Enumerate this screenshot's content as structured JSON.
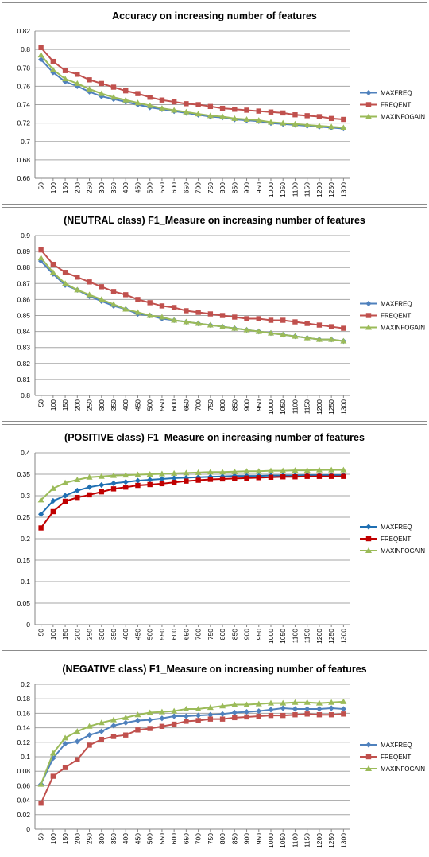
{
  "chart_data": [
    {
      "type": "line",
      "title": "Accuracy on increasing number of features",
      "xlabel": "",
      "ylabel": "",
      "categories": [
        "50",
        "100",
        "150",
        "200",
        "250",
        "300",
        "350",
        "400",
        "450",
        "500",
        "550",
        "600",
        "650",
        "700",
        "750",
        "800",
        "850",
        "900",
        "950",
        "1000",
        "1050",
        "1100",
        "1150",
        "1200",
        "1250",
        "1300"
      ],
      "ylim": [
        0.66,
        0.82
      ],
      "yticks": [
        "0.66",
        "0.68",
        "0.7",
        "0.72",
        "0.74",
        "0.76",
        "0.78",
        "0.8",
        "0.82"
      ],
      "grid": true,
      "legend": "right",
      "series": [
        {
          "name": "MAXFREQ",
          "color": "#4f81bd",
          "marker": "diamond",
          "values": [
            0.789,
            0.775,
            0.765,
            0.76,
            0.754,
            0.749,
            0.746,
            0.743,
            0.74,
            0.737,
            0.735,
            0.733,
            0.731,
            0.729,
            0.727,
            0.726,
            0.724,
            0.723,
            0.722,
            0.72,
            0.719,
            0.718,
            0.717,
            0.716,
            0.715,
            0.714
          ]
        },
        {
          "name": "FREQENT",
          "color": "#c0504d",
          "marker": "square",
          "values": [
            0.802,
            0.787,
            0.777,
            0.773,
            0.767,
            0.763,
            0.759,
            0.755,
            0.752,
            0.748,
            0.745,
            0.743,
            0.741,
            0.74,
            0.738,
            0.736,
            0.735,
            0.734,
            0.733,
            0.732,
            0.731,
            0.729,
            0.728,
            0.727,
            0.725,
            0.724
          ]
        },
        {
          "name": "MAXINFOGAIN",
          "color": "#9bbb59",
          "marker": "triangle",
          "values": [
            0.794,
            0.778,
            0.768,
            0.763,
            0.757,
            0.752,
            0.748,
            0.745,
            0.742,
            0.739,
            0.736,
            0.734,
            0.732,
            0.73,
            0.728,
            0.727,
            0.725,
            0.724,
            0.723,
            0.721,
            0.72,
            0.719,
            0.718,
            0.717,
            0.716,
            0.715
          ]
        }
      ]
    },
    {
      "type": "line",
      "title": "(NEUTRAL class) F1_Measure on increasing number of features",
      "xlabel": "",
      "ylabel": "",
      "categories": [
        "50",
        "100",
        "150",
        "200",
        "250",
        "300",
        "350",
        "400",
        "450",
        "500",
        "550",
        "600",
        "650",
        "700",
        "750",
        "800",
        "850",
        "900",
        "950",
        "1000",
        "1050",
        "1100",
        "1150",
        "1200",
        "1250",
        "1300"
      ],
      "ylim": [
        0.8,
        0.9
      ],
      "yticks": [
        "0.8",
        "0.81",
        "0.82",
        "0.83",
        "0.84",
        "0.85",
        "0.86",
        "0.87",
        "0.88",
        "0.89",
        "0.9"
      ],
      "grid": true,
      "legend": "right",
      "series": [
        {
          "name": "MAXFREQ",
          "color": "#4f81bd",
          "marker": "diamond",
          "values": [
            0.884,
            0.876,
            0.869,
            0.866,
            0.862,
            0.859,
            0.856,
            0.854,
            0.851,
            0.85,
            0.848,
            0.847,
            0.846,
            0.845,
            0.844,
            0.843,
            0.842,
            0.841,
            0.84,
            0.839,
            0.838,
            0.837,
            0.836,
            0.835,
            0.835,
            0.834
          ]
        },
        {
          "name": "FREQENT",
          "color": "#c0504d",
          "marker": "square",
          "values": [
            0.891,
            0.882,
            0.877,
            0.874,
            0.871,
            0.868,
            0.865,
            0.863,
            0.86,
            0.858,
            0.856,
            0.855,
            0.853,
            0.852,
            0.851,
            0.85,
            0.849,
            0.848,
            0.848,
            0.847,
            0.847,
            0.846,
            0.845,
            0.844,
            0.843,
            0.842
          ]
        },
        {
          "name": "MAXINFOGAIN",
          "color": "#9bbb59",
          "marker": "triangle",
          "values": [
            0.886,
            0.877,
            0.87,
            0.866,
            0.863,
            0.86,
            0.857,
            0.854,
            0.852,
            0.85,
            0.849,
            0.847,
            0.846,
            0.845,
            0.844,
            0.843,
            0.842,
            0.841,
            0.84,
            0.839,
            0.838,
            0.837,
            0.836,
            0.835,
            0.835,
            0.834
          ]
        }
      ]
    },
    {
      "type": "line",
      "title": "(POSITIVE class) F1_Measure on increasing number of features",
      "xlabel": "",
      "ylabel": "",
      "categories": [
        "50",
        "100",
        "150",
        "200",
        "250",
        "300",
        "350",
        "400",
        "450",
        "500",
        "550",
        "600",
        "650",
        "700",
        "750",
        "800",
        "850",
        "900",
        "950",
        "1000",
        "1050",
        "1100",
        "1150",
        "1200",
        "1250",
        "1300"
      ],
      "ylim": [
        0,
        0.4
      ],
      "yticks": [
        "0",
        "0.05",
        "0.1",
        "0.15",
        "0.2",
        "0.25",
        "0.3",
        "0.35",
        "0.4"
      ],
      "grid": true,
      "legend": "right",
      "series": [
        {
          "name": "MAXFREQ",
          "color": "#1f6fb2",
          "marker": "diamond",
          "values": [
            0.257,
            0.288,
            0.3,
            0.312,
            0.32,
            0.325,
            0.329,
            0.332,
            0.335,
            0.337,
            0.339,
            0.341,
            0.342,
            0.343,
            0.344,
            0.345,
            0.346,
            0.346,
            0.346,
            0.347,
            0.347,
            0.347,
            0.348,
            0.348,
            0.348,
            0.348
          ]
        },
        {
          "name": "FREQENT",
          "color": "#c00000",
          "marker": "square",
          "values": [
            0.225,
            0.263,
            0.287,
            0.296,
            0.302,
            0.309,
            0.316,
            0.32,
            0.324,
            0.326,
            0.328,
            0.331,
            0.334,
            0.336,
            0.338,
            0.339,
            0.34,
            0.341,
            0.342,
            0.343,
            0.344,
            0.344,
            0.345,
            0.345,
            0.345,
            0.345
          ]
        },
        {
          "name": "MAXINFOGAIN",
          "color": "#9bbb59",
          "marker": "triangle",
          "values": [
            0.29,
            0.317,
            0.33,
            0.337,
            0.343,
            0.345,
            0.347,
            0.348,
            0.349,
            0.35,
            0.351,
            0.352,
            0.353,
            0.354,
            0.355,
            0.355,
            0.356,
            0.357,
            0.357,
            0.358,
            0.358,
            0.359,
            0.359,
            0.36,
            0.36,
            0.36
          ]
        }
      ]
    },
    {
      "type": "line",
      "title": "(NEGATIVE class) F1_Measure on increasing number of features",
      "xlabel": "",
      "ylabel": "",
      "categories": [
        "50",
        "100",
        "150",
        "200",
        "250",
        "300",
        "350",
        "400",
        "450",
        "500",
        "550",
        "600",
        "650",
        "700",
        "750",
        "800",
        "850",
        "900",
        "950",
        "1000",
        "1050",
        "1100",
        "1150",
        "1200",
        "1250",
        "1300"
      ],
      "ylim": [
        0,
        0.2
      ],
      "yticks": [
        "0",
        "0.02",
        "0.04",
        "0.06",
        "0.08",
        "0.1",
        "0.12",
        "0.14",
        "0.16",
        "0.18",
        "0.2"
      ],
      "grid": true,
      "legend": "right",
      "series": [
        {
          "name": "MAXFREQ",
          "color": "#4f81bd",
          "marker": "diamond",
          "values": [
            0.062,
            0.098,
            0.118,
            0.121,
            0.13,
            0.135,
            0.143,
            0.147,
            0.15,
            0.151,
            0.153,
            0.156,
            0.156,
            0.157,
            0.158,
            0.159,
            0.161,
            0.162,
            0.163,
            0.165,
            0.167,
            0.166,
            0.166,
            0.166,
            0.167,
            0.166
          ]
        },
        {
          "name": "FREQENT",
          "color": "#c0504d",
          "marker": "square",
          "values": [
            0.036,
            0.073,
            0.085,
            0.096,
            0.116,
            0.124,
            0.128,
            0.13,
            0.137,
            0.139,
            0.142,
            0.145,
            0.149,
            0.15,
            0.152,
            0.152,
            0.154,
            0.155,
            0.156,
            0.157,
            0.157,
            0.158,
            0.159,
            0.158,
            0.158,
            0.159
          ]
        },
        {
          "name": "MAXINFOGAIN",
          "color": "#9bbb59",
          "marker": "triangle",
          "values": [
            0.062,
            0.105,
            0.126,
            0.135,
            0.142,
            0.147,
            0.151,
            0.154,
            0.158,
            0.161,
            0.162,
            0.163,
            0.166,
            0.166,
            0.168,
            0.17,
            0.172,
            0.172,
            0.173,
            0.174,
            0.174,
            0.175,
            0.175,
            0.174,
            0.175,
            0.176
          ]
        }
      ]
    }
  ]
}
